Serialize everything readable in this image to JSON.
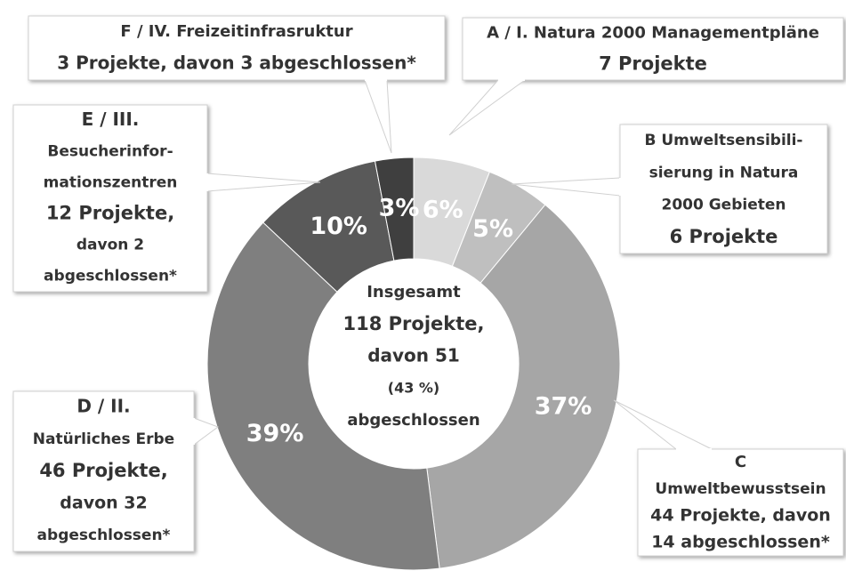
{
  "chart_data": {
    "type": "donut",
    "values": [
      6,
      5,
      37,
      39,
      10,
      3
    ],
    "value_labels": [
      "6%",
      "5%",
      "37%",
      "39%",
      "10%",
      "3%"
    ],
    "colors": [
      "#d9d9d9",
      "#bfbfbf",
      "#a6a6a6",
      "#7f7f7f",
      "#595959",
      "#3f3f3f"
    ],
    "labels": [
      [
        "A / I. Natura 2000 Managementpläne",
        "7 Projekte"
      ],
      [
        "B Umweltsensibili-",
        "sierung in Natura",
        "2000 Gebieten",
        "6 Projekte"
      ],
      [
        "C",
        "Umweltbewusstsein",
        "44 Projekte, davon",
        "14 abgeschlossen*"
      ],
      [
        "D / II.",
        "Natürliches Erbe",
        "46 Projekte,",
        "davon 32",
        "abgeschlossen*"
      ],
      [
        "E / III.",
        "Besucherinfor-",
        "mationszentren",
        "12 Projekte,",
        "davon 2",
        "abgeschlossen*"
      ],
      [
        "F / IV. Freizeitinfrasruktur",
        "3 Projekte, davon 3 abgeschlossen*"
      ]
    ],
    "center_text": [
      "Insgesamt",
      "118 Projekte,",
      "davon 51",
      "(43 %)",
      "abgeschlossen"
    ]
  }
}
